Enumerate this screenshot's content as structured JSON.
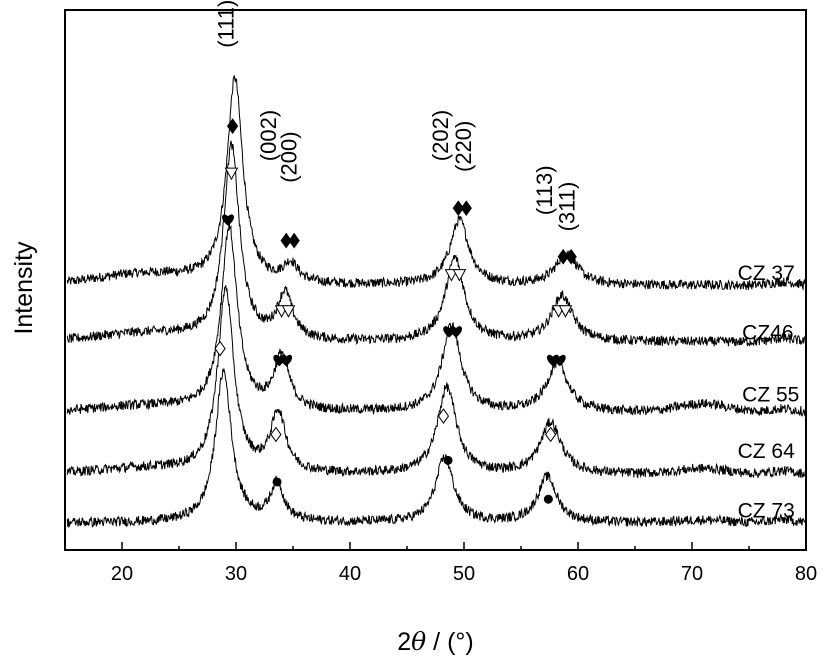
{
  "chart_data": {
    "type": "line",
    "title": "",
    "xlabel_prefix": "2",
    "xlabel_symbol": "θ",
    "xlabel_suffix": " / (°)",
    "ylabel": "Intensity",
    "xlim": [
      15,
      80
    ],
    "ylim": [
      0,
      1
    ],
    "grid": false,
    "legend": "none",
    "x_ticks": [
      20,
      30,
      40,
      50,
      60,
      70,
      80
    ],
    "y_ticks": [],
    "series": [
      {
        "name": "CZ 37",
        "offset": 0.49,
        "peaks": [
          {
            "x": 29.9,
            "height": 0.38,
            "width": 0.85
          },
          {
            "x": 34.8,
            "height": 0.035,
            "width": 0.8
          },
          {
            "x": 49.6,
            "height": 0.12,
            "width": 1.0
          },
          {
            "x": 59.0,
            "height": 0.06,
            "width": 1.1
          }
        ],
        "hump": 0.02,
        "tail": 0.0
      },
      {
        "name": "CZ46",
        "offset": 0.385,
        "peaks": [
          {
            "x": 29.6,
            "height": 0.36,
            "width": 0.85
          },
          {
            "x": 34.3,
            "height": 0.085,
            "width": 0.8
          },
          {
            "x": 49.2,
            "height": 0.155,
            "width": 1.0
          },
          {
            "x": 58.6,
            "height": 0.085,
            "width": 1.1
          }
        ],
        "hump": 0.015,
        "tail": 0.0
      },
      {
        "name": "CZ 55",
        "offset": 0.255,
        "peaks": [
          {
            "x": 29.4,
            "height": 0.34,
            "width": 0.85
          },
          {
            "x": 34.0,
            "height": 0.1,
            "width": 0.8
          },
          {
            "x": 48.9,
            "height": 0.16,
            "width": 1.0
          },
          {
            "x": 58.2,
            "height": 0.09,
            "width": 1.1
          }
        ],
        "hump": 0.01,
        "tail": 0.015
      },
      {
        "name": "CZ 64",
        "offset": 0.14,
        "peaks": [
          {
            "x": 29.1,
            "height": 0.34,
            "width": 0.85
          },
          {
            "x": 33.7,
            "height": 0.11,
            "width": 0.8
          },
          {
            "x": 48.5,
            "height": 0.16,
            "width": 1.0
          },
          {
            "x": 57.6,
            "height": 0.095,
            "width": 1.1
          }
        ],
        "hump": 0.01,
        "tail": 0.01
      },
      {
        "name": "CZ 73",
        "offset": 0.05,
        "peaks": [
          {
            "x": 28.9,
            "height": 0.28,
            "width": 0.85
          },
          {
            "x": 33.6,
            "height": 0.07,
            "width": 0.7
          },
          {
            "x": 48.3,
            "height": 0.12,
            "width": 0.95
          },
          {
            "x": 57.3,
            "height": 0.085,
            "width": 1.0
          }
        ],
        "hump": 0.0,
        "tail": 0.005
      }
    ],
    "hkl_annotations": [
      {
        "label": "(111)",
        "x": 29.8,
        "y": 0.93
      },
      {
        "label": "(002)",
        "x": 33.5,
        "y": 0.72
      },
      {
        "label": "(200)",
        "x": 35.3,
        "y": 0.68
      },
      {
        "label": "(202)",
        "x": 48.6,
        "y": 0.72
      },
      {
        "label": "(220)",
        "x": 50.6,
        "y": 0.7
      },
      {
        "label": "(113)",
        "x": 57.7,
        "y": 0.62
      },
      {
        "label": "(311)",
        "x": 59.7,
        "y": 0.59
      }
    ],
    "phase_markers": [
      {
        "symbol": "diamond-filled",
        "x": 29.7,
        "y": 0.785
      },
      {
        "symbol": "diamond-filled",
        "x": 34.4,
        "y": 0.573
      },
      {
        "symbol": "diamond-filled",
        "x": 35.1,
        "y": 0.573
      },
      {
        "symbol": "diamond-filled",
        "x": 49.5,
        "y": 0.633
      },
      {
        "symbol": "diamond-filled",
        "x": 50.2,
        "y": 0.633
      },
      {
        "symbol": "diamond-filled",
        "x": 58.7,
        "y": 0.543
      },
      {
        "symbol": "diamond-filled",
        "x": 59.4,
        "y": 0.543
      },
      {
        "symbol": "triangle-open",
        "x": 29.6,
        "y": 0.698
      },
      {
        "symbol": "triangle-open",
        "x": 34.0,
        "y": 0.443
      },
      {
        "symbol": "triangle-open",
        "x": 34.6,
        "y": 0.443
      },
      {
        "symbol": "triangle-open",
        "x": 48.9,
        "y": 0.51
      },
      {
        "symbol": "triangle-open",
        "x": 49.6,
        "y": 0.51
      },
      {
        "symbol": "triangle-open",
        "x": 58.3,
        "y": 0.443
      },
      {
        "symbol": "triangle-open",
        "x": 58.9,
        "y": 0.443
      },
      {
        "symbol": "heart",
        "x": 29.3,
        "y": 0.612
      },
      {
        "symbol": "heart",
        "x": 33.8,
        "y": 0.352
      },
      {
        "symbol": "heart",
        "x": 34.4,
        "y": 0.352
      },
      {
        "symbol": "heart",
        "x": 48.7,
        "y": 0.405
      },
      {
        "symbol": "heart",
        "x": 49.3,
        "y": 0.405
      },
      {
        "symbol": "heart",
        "x": 57.8,
        "y": 0.352
      },
      {
        "symbol": "heart",
        "x": 58.4,
        "y": 0.352
      },
      {
        "symbol": "diamond-open",
        "x": 28.6,
        "y": 0.373
      },
      {
        "symbol": "diamond-open",
        "x": 33.5,
        "y": 0.214
      },
      {
        "symbol": "diamond-open",
        "x": 48.2,
        "y": 0.248
      },
      {
        "symbol": "diamond-open",
        "x": 57.6,
        "y": 0.214
      },
      {
        "symbol": "circle-filled",
        "x": 33.6,
        "y": 0.126
      },
      {
        "symbol": "circle-filled",
        "x": 48.6,
        "y": 0.166
      },
      {
        "symbol": "circle-filled",
        "x": 57.4,
        "y": 0.094
      }
    ],
    "series_label_positions": [
      {
        "name": "CZ 37",
        "x": 74.0,
        "y": 0.5
      },
      {
        "name": "CZ46",
        "x": 74.4,
        "y": 0.39
      },
      {
        "name": "CZ 55",
        "x": 74.4,
        "y": 0.275
      },
      {
        "name": "CZ 64",
        "x": 74.0,
        "y": 0.17
      },
      {
        "name": "CZ 73",
        "x": 74.0,
        "y": 0.06
      }
    ],
    "colors": {
      "line": "#000000",
      "axis": "#000000",
      "background": "#ffffff"
    }
  }
}
